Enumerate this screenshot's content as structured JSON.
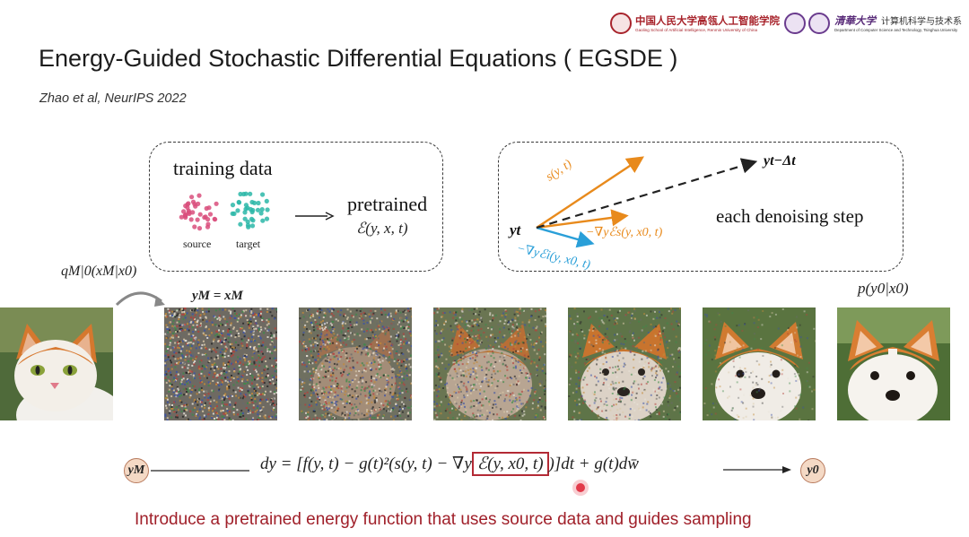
{
  "slide": {
    "title": "Energy-Guided Stochastic Differential Equations ( EGSDE )",
    "citation": "Zhao et al, NeurIPS 2022",
    "caption": "Introduce a pretrained energy function that uses source data and guides sampling"
  },
  "header": {
    "ruc_name": "中国人民大学高瓴人工智能学院",
    "ruc_sub": "Gaoling School of Artificial Intelligence, Renmin University of China",
    "thu_name": "清華大学",
    "thu_dept": "计算机科学与技术系",
    "thu_sub": "Department of Computer Science and Technology, Tsinghua University"
  },
  "left_box": {
    "heading": "training data",
    "source_label": "source",
    "target_label": "target",
    "pretrained_label": "pretrained",
    "energy_formula": "ℰ(y, x, t)"
  },
  "right_box": {
    "yt": "yt",
    "yt_minus": "yt−Δt",
    "score": "s(y, t)",
    "grad_s": "−∇yℰs(y, x0, t)",
    "grad_i": "−∇yℰi(y, x0, t)",
    "step_label": "each denoising step"
  },
  "labels": {
    "q_label": "qM|0(xM|x0)",
    "ym_eq": "yM = xM",
    "p_label": "p(y0|x0)"
  },
  "equation": {
    "node_start": "yM",
    "node_end": "y0",
    "lhs": "dy = [f(y, t) − g(t)²(s(y, t) − ∇y",
    "boxed": "ℰ(y, x0, t)",
    "rhs": ")]dt + g(t)dw̄"
  },
  "colors": {
    "caption_red": "#a0202a",
    "orange_arrow": "#e88a1c",
    "blue_arrow": "#2a9fd8",
    "source_pink": "#d94f7d",
    "target_teal": "#2bb7a8",
    "box_red": "#b32a35"
  },
  "images": [
    {
      "name": "cat-source-image",
      "noise": 0
    },
    {
      "name": "noise-step-1",
      "noise": 1.0
    },
    {
      "name": "noise-step-2",
      "noise": 0.8
    },
    {
      "name": "noise-step-3",
      "noise": 0.6
    },
    {
      "name": "noise-step-4",
      "noise": 0.4
    },
    {
      "name": "noise-step-5",
      "noise": 0.15
    },
    {
      "name": "dog-output-image",
      "noise": 0
    }
  ]
}
